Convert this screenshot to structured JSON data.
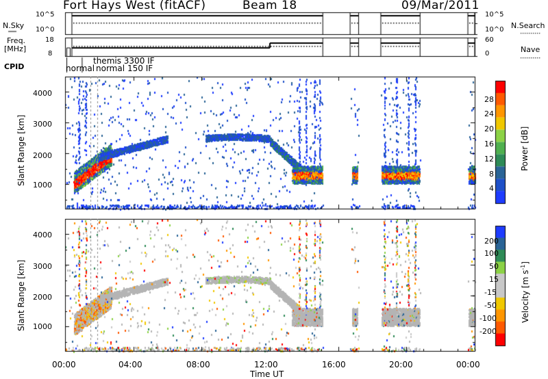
{
  "header": {
    "station": "Fort Hays West (fitACF)",
    "beam": "Beam 18",
    "date": "09/Mar/2011"
  },
  "params": {
    "nsky_label": "N.Sky",
    "nsky_ticks": [
      "10^5",
      "10^0"
    ],
    "freq_label_1": "Freq.",
    "freq_label_2": "[MHz]",
    "freq_ticks": [
      "18",
      "8"
    ],
    "nsearch_label": "N.Search",
    "nsearch_ticks": [
      "10^5",
      "10^0"
    ],
    "nave_label": "Nave",
    "nave_ticks": [
      "60",
      "0"
    ],
    "cpid_label": "CPID",
    "cpid_entries": [
      "normal",
      "normal",
      "themis 3300 IF",
      "150 IF"
    ]
  },
  "colors": {
    "power": [
      "#1e3cff",
      "#1e50c8",
      "#2a6496",
      "#2e8b57",
      "#4fb04f",
      "#8cd246",
      "#f0c800",
      "#ff9600",
      "#ff5a00",
      "#ff0000"
    ],
    "velocity": [
      "#ff0000",
      "#ff5a00",
      "#ff9600",
      "#f0c800",
      "#c8c8c8",
      "#c8c8c8",
      "#8cd246",
      "#2e8b57",
      "#2a6496",
      "#1e3cff"
    ],
    "ground": "#b4b4b4"
  },
  "chart_data": [
    {
      "type": "heatmap",
      "name": "power",
      "ylabel": "Slant Range [km]",
      "ylim": [
        200,
        4500
      ],
      "yticks": [
        "1000",
        "2000",
        "3000",
        "4000"
      ],
      "colorbar": {
        "label": "Power [dB]",
        "ticks": [
          "4",
          "8",
          "12",
          "16",
          "20",
          "24",
          "28"
        ]
      },
      "data_gaps_hours": [
        [
          15.1,
          16.7
        ],
        [
          17.2,
          18.5
        ],
        [
          20.8,
          23.6
        ]
      ]
    },
    {
      "type": "heatmap",
      "name": "velocity",
      "ylabel": "Slant Range [km]",
      "ylim": [
        200,
        4500
      ],
      "yticks": [
        "1000",
        "2000",
        "3000",
        "4000"
      ],
      "colorbar": {
        "label": "Velocity [m s",
        "label_sup": "-1",
        "label_end": "]",
        "ticks": [
          "200",
          "100",
          "50",
          "15",
          "-15",
          "-50",
          "-100",
          "-200"
        ]
      }
    }
  ],
  "xaxis": {
    "label": "Time UT",
    "ticks": [
      "00:00",
      "04:00",
      "08:00",
      "12:00",
      "16:00",
      "20:00",
      "00:00"
    ],
    "tick_hours": [
      0,
      4,
      8,
      12,
      16,
      20,
      24
    ]
  }
}
